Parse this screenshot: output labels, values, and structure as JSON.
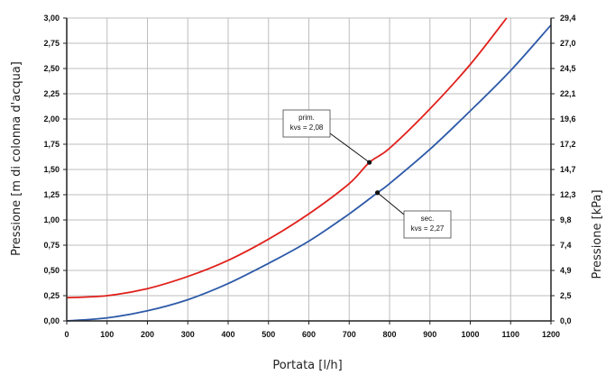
{
  "chart_data": {
    "type": "line",
    "xlabel": "Portata [l/h]",
    "ylabel_left": "Pressione [m di colonna d'acqua]",
    "ylabel_right": "Pressione [kPa]",
    "xlim": [
      0,
      1200
    ],
    "ylim": [
      0,
      3.0
    ],
    "grid": true,
    "x_ticks": [
      0,
      100,
      200,
      300,
      400,
      500,
      600,
      700,
      800,
      900,
      1000,
      1100,
      1200
    ],
    "x_tick_labels": [
      "0",
      "100",
      "200",
      "300",
      "400",
      "500",
      "600",
      "700",
      "800",
      "900",
      "1000",
      "1100",
      "1200"
    ],
    "y_left_ticks": [
      0,
      0.25,
      0.5,
      0.75,
      1.0,
      1.25,
      1.5,
      1.75,
      2.0,
      2.25,
      2.5,
      2.75,
      3.0
    ],
    "y_left_tick_labels": [
      "0,00",
      "0,25",
      "0,50",
      "0,75",
      "1,00",
      "1,25",
      "1,50",
      "1,75",
      "2,00",
      "2,25",
      "2,50",
      "2,75",
      "3,00"
    ],
    "y_right_tick_labels": [
      "0,0",
      "2,5",
      "4,9",
      "7,4",
      "9,8",
      "12,3",
      "14,7",
      "17,2",
      "19,6",
      "22,1",
      "24,5",
      "27,0",
      "29,4"
    ],
    "series": [
      {
        "color": "#e0201b",
        "x": [
          0,
          100,
          200,
          300,
          400,
          500,
          600,
          700,
          750,
          800,
          900,
          1000,
          1090
        ],
        "y": [
          0.23,
          0.25,
          0.32,
          0.44,
          0.6,
          0.81,
          1.06,
          1.36,
          1.57,
          1.71,
          2.1,
          2.54,
          3.0
        ]
      },
      {
        "color": "#2e5aa8",
        "x": [
          0,
          100,
          200,
          300,
          400,
          500,
          600,
          700,
          770,
          800,
          900,
          1000,
          1100,
          1200
        ],
        "y": [
          0.0,
          0.03,
          0.1,
          0.21,
          0.37,
          0.57,
          0.79,
          1.06,
          1.27,
          1.36,
          1.7,
          2.08,
          2.48,
          2.93
        ]
      }
    ],
    "annotations": [
      {
        "lines": [
          "prim.",
          "kvs = 2,08"
        ],
        "x": 750,
        "y": 1.57
      },
      {
        "lines": [
          "sec.",
          "kvs = 2,27"
        ],
        "x": 770,
        "y": 1.27
      }
    ]
  }
}
